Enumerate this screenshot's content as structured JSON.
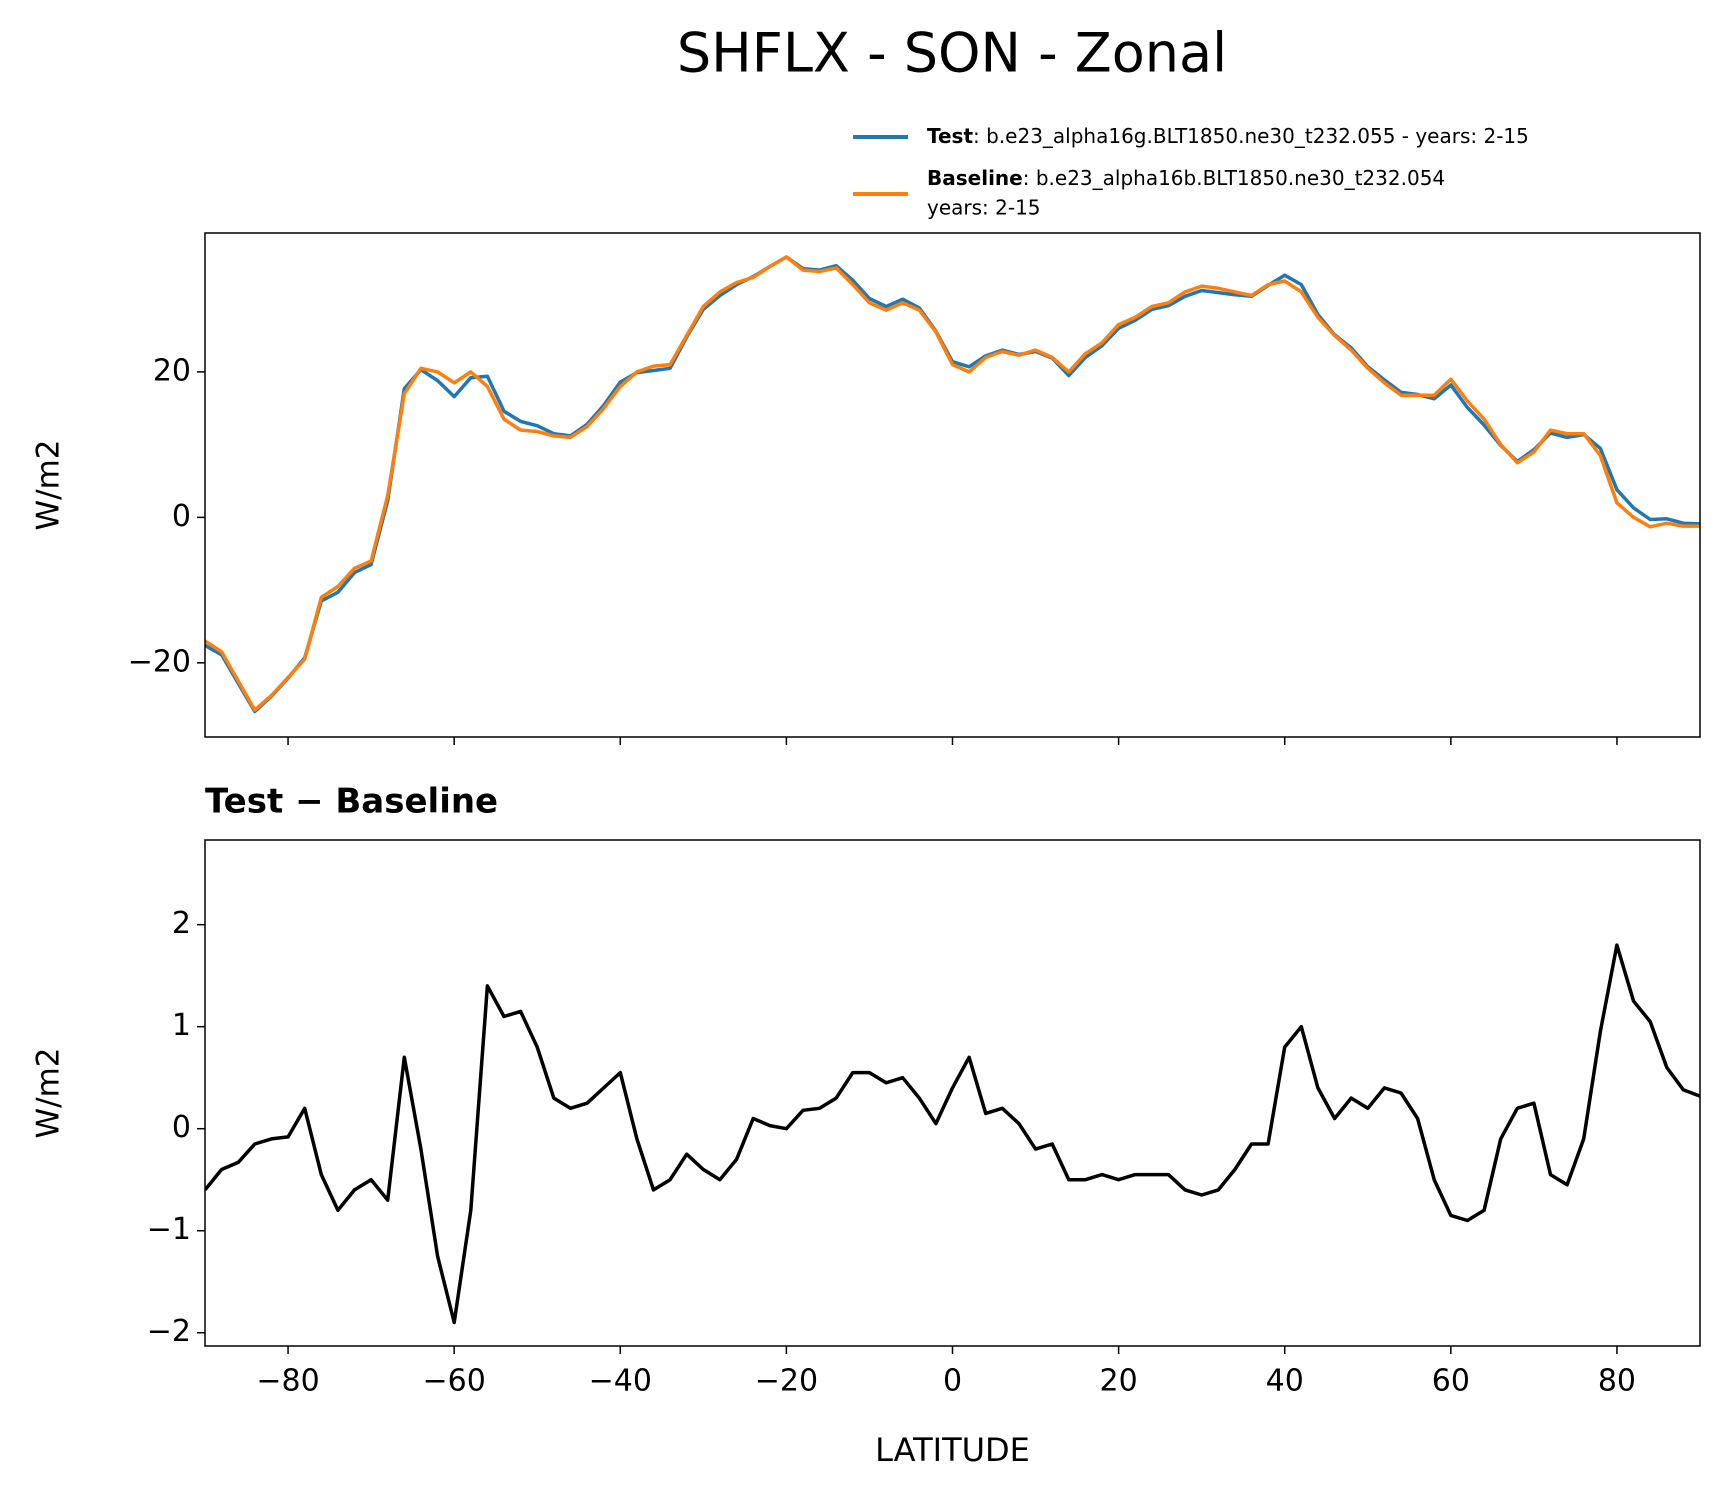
{
  "title": "SHFLX - SON - Zonal",
  "chart_data": [
    {
      "type": "line",
      "ylabel": "W/m2",
      "xlim": [
        -90,
        90
      ],
      "ylim": [
        -30.2,
        39.1
      ],
      "xticks": [
        -80,
        -60,
        -40,
        -20,
        0,
        20,
        40,
        60,
        80
      ],
      "xtick_labels": false,
      "yticks": [
        {
          "value": -20,
          "label": "−20"
        },
        0,
        20
      ],
      "legend": "upper right",
      "x": [
        -90,
        -88,
        -86,
        -84,
        -82,
        -80,
        -78,
        -76,
        -74,
        -72,
        -70,
        -68,
        -66,
        -64,
        -62,
        -60,
        -58,
        -56,
        -54,
        -52,
        -50,
        -48,
        -46,
        -44,
        -42,
        -40,
        -38,
        -36,
        -34,
        -32,
        -30,
        -28,
        -26,
        -24,
        -22,
        -20,
        -18,
        -16,
        -14,
        -12,
        -10,
        -8,
        -6,
        -4,
        -2,
        0,
        2,
        4,
        6,
        8,
        10,
        12,
        14,
        16,
        18,
        20,
        22,
        24,
        26,
        28,
        30,
        32,
        34,
        36,
        38,
        40,
        42,
        44,
        46,
        48,
        50,
        52,
        54,
        56,
        58,
        60,
        62,
        64,
        66,
        68,
        70,
        72,
        74,
        76,
        78,
        80,
        82,
        84,
        86,
        88,
        90
      ],
      "series": [
        {
          "name": "Test",
          "label": [
            ": b.e23_alpha16g.BLT1850.ne30_t232.055 - years: 2-15"
          ],
          "color": "#1f77b4",
          "values": [
            -17.6,
            -18.9,
            -22.8,
            -26.7,
            -24.6,
            -22.1,
            -19.3,
            -11.5,
            -10.3,
            -7.6,
            -6.5,
            2.3,
            17.7,
            20.3,
            18.8,
            16.6,
            19.2,
            19.4,
            14.6,
            13.2,
            12.6,
            11.5,
            11.2,
            12.8,
            15.4,
            18.6,
            19.9,
            20.2,
            20.5,
            24.8,
            28.6,
            30.5,
            32.0,
            33.1,
            34.5,
            35.8,
            34.2,
            34.0,
            34.6,
            32.6,
            30.1,
            29.0,
            30.0,
            28.8,
            25.6,
            21.4,
            20.7,
            22.2,
            23.0,
            22.4,
            22.8,
            21.9,
            19.5,
            22.0,
            23.6,
            26.0,
            27.1,
            28.6,
            29.1,
            30.4,
            31.2,
            30.9,
            30.6,
            30.4,
            31.9,
            33.3,
            32.0,
            27.9,
            25.1,
            23.3,
            20.7,
            18.9,
            17.2,
            16.9,
            16.3,
            18.2,
            15.1,
            12.7,
            9.9,
            7.7,
            9.3,
            11.6,
            11.0,
            11.4,
            9.5,
            3.8,
            1.3,
            -0.3,
            -0.2,
            -0.8,
            -0.9
          ]
        },
        {
          "name": "Baseline",
          "label": [
            ": b.e23_alpha16b.BLT1850.ne30_t232.054",
            "years: 2-15"
          ],
          "color": "#ff7f0e",
          "values": [
            -17,
            -18.5,
            -22.5,
            -26.5,
            -24.5,
            -22,
            -19.5,
            -11,
            -9.5,
            -7,
            -6,
            3,
            17,
            20.5,
            20,
            18.5,
            20,
            18,
            13.5,
            12,
            11.8,
            11.2,
            11,
            12.5,
            15,
            18,
            20,
            20.8,
            21,
            25,
            29,
            31,
            32.3,
            33,
            34.5,
            35.8,
            34,
            33.8,
            34.3,
            32,
            29.5,
            28.5,
            29.5,
            28.5,
            25.5,
            21,
            20,
            22,
            22.8,
            22.3,
            23,
            22,
            20,
            22.5,
            24,
            26.5,
            27.5,
            29,
            29.5,
            31,
            31.8,
            31.5,
            31,
            30.5,
            32,
            32.5,
            31,
            27.5,
            25,
            23,
            20.5,
            18.5,
            16.8,
            16.8,
            16.8,
            19,
            16,
            13.5,
            10,
            7.5,
            9,
            12,
            11.5,
            11.5,
            8.5,
            2,
            0,
            -1.3,
            -0.8,
            -1.2,
            -1.2
          ]
        }
      ]
    },
    {
      "type": "line",
      "title": "Test − Baseline",
      "xlabel": "LATITUDE",
      "ylabel": "W/m2",
      "xlim": [
        -90,
        90
      ],
      "ylim": [
        -2.13,
        2.83
      ],
      "xticks": [
        {
          "value": -80,
          "label": "−80"
        },
        {
          "value": -60,
          "label": "−60"
        },
        {
          "value": -40,
          "label": "−40"
        },
        {
          "value": -20,
          "label": "−20"
        },
        0,
        20,
        40,
        60,
        80
      ],
      "xtick_labels": true,
      "yticks": [
        {
          "value": -2,
          "label": "−2"
        },
        {
          "value": -1,
          "label": "−1"
        },
        0,
        1,
        2
      ],
      "x": [
        -90,
        -88,
        -86,
        -84,
        -82,
        -80,
        -78,
        -76,
        -74,
        -72,
        -70,
        -68,
        -66,
        -64,
        -62,
        -60,
        -58,
        -56,
        -54,
        -52,
        -50,
        -48,
        -46,
        -44,
        -42,
        -40,
        -38,
        -36,
        -34,
        -32,
        -30,
        -28,
        -26,
        -24,
        -22,
        -20,
        -18,
        -16,
        -14,
        -12,
        -10,
        -8,
        -6,
        -4,
        -2,
        0,
        2,
        4,
        6,
        8,
        10,
        12,
        14,
        16,
        18,
        20,
        22,
        24,
        26,
        28,
        30,
        32,
        34,
        36,
        38,
        40,
        42,
        44,
        46,
        48,
        50,
        52,
        54,
        56,
        58,
        60,
        62,
        64,
        66,
        68,
        70,
        72,
        74,
        76,
        78,
        80,
        82,
        84,
        86,
        88,
        90
      ],
      "series": [
        {
          "color": "#000000",
          "values": [
            -0.6,
            -0.4,
            -0.33,
            -0.15,
            -0.1,
            -0.08,
            0.2,
            -0.45,
            -0.8,
            -0.6,
            -0.5,
            -0.7,
            0.7,
            -0.2,
            -1.25,
            -1.9,
            -0.8,
            1.4,
            1.1,
            1.15,
            0.8,
            0.3,
            0.2,
            0.25,
            0.4,
            0.55,
            -0.1,
            -0.6,
            -0.5,
            -0.25,
            -0.4,
            -0.5,
            -0.3,
            0.1,
            0.03,
            0.0,
            0.18,
            0.2,
            0.3,
            0.55,
            0.55,
            0.45,
            0.5,
            0.3,
            0.05,
            0.4,
            0.7,
            0.15,
            0.2,
            0.05,
            -0.2,
            -0.15,
            -0.5,
            -0.5,
            -0.45,
            -0.5,
            -0.45,
            -0.45,
            -0.45,
            -0.6,
            -0.65,
            -0.6,
            -0.4,
            -0.15,
            -0.15,
            0.8,
            1.0,
            0.4,
            0.1,
            0.3,
            0.2,
            0.4,
            0.35,
            0.1,
            -0.5,
            -0.85,
            -0.9,
            -0.8,
            -0.1,
            0.2,
            0.25,
            -0.45,
            -0.55,
            -0.1,
            0.95,
            1.8,
            1.25,
            1.05,
            0.6,
            0.38,
            0.32
          ]
        }
      ]
    }
  ]
}
